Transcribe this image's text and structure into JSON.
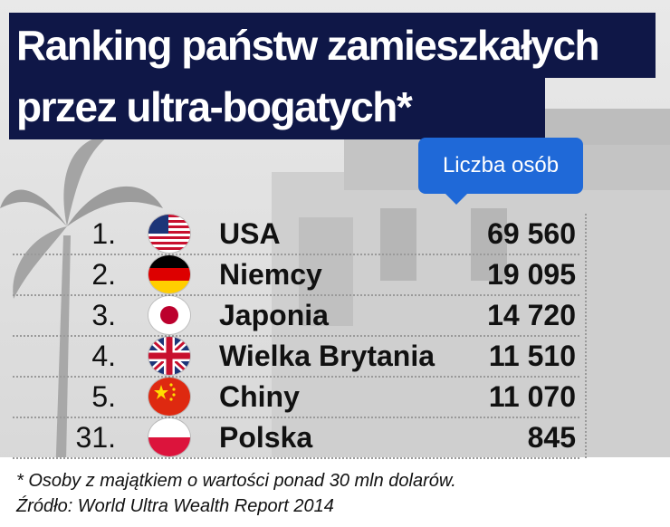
{
  "title_line1": "Ranking państw zamieszkałych",
  "title_line2": "przez ultra-bogatych*",
  "column_label": "Liczba osób",
  "colors": {
    "title_bg": "#0f1747",
    "tag_bg": "#1f69d8",
    "text": "#111111"
  },
  "chart_data": {
    "type": "table",
    "columns": [
      "",
      "",
      "Liczba osób"
    ],
    "rows": [
      {
        "rank": "1.",
        "country": "USA",
        "flag": "usa-flag-icon",
        "value": 69560,
        "value_label": "69 560"
      },
      {
        "rank": "2.",
        "country": "Niemcy",
        "flag": "germany-flag-icon",
        "value": 19095,
        "value_label": "19 095"
      },
      {
        "rank": "3.",
        "country": "Japonia",
        "flag": "japan-flag-icon",
        "value": 14720,
        "value_label": "14 720"
      },
      {
        "rank": "4.",
        "country": "Wielka Brytania",
        "flag": "uk-flag-icon",
        "value": 11510,
        "value_label": "11 510"
      },
      {
        "rank": "5.",
        "country": "Chiny",
        "flag": "china-flag-icon",
        "value": 11070,
        "value_label": "11 070"
      },
      {
        "rank": "31.",
        "country": "Polska",
        "flag": "poland-flag-icon",
        "value": 845,
        "value_label": "845"
      }
    ]
  },
  "footnote": "* Osoby z majątkiem o wartości ponad 30 mln dolarów.",
  "source": "Źródło: World Ultra Wealth Report 2014"
}
